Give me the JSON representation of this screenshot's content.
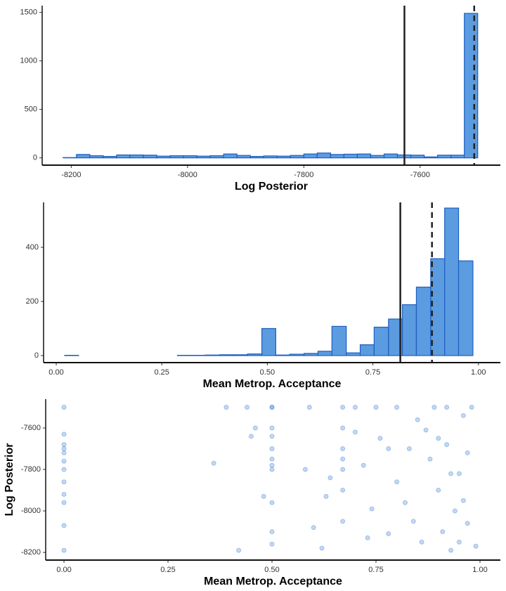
{
  "chart_data": [
    {
      "type": "histogram",
      "xlabel": "Log Posterior",
      "bins": [
        -8214,
        -8191,
        -8168,
        -8145,
        -8122,
        -8099,
        -8076,
        -8053,
        -8030,
        -8007,
        -7984,
        -7961,
        -7938,
        -7915,
        -7892,
        -7869,
        -7846,
        -7823,
        -7800,
        -7777,
        -7754,
        -7731,
        -7708,
        -7685,
        -7662,
        -7639,
        -7616,
        -7593,
        -7570,
        -7547,
        -7524,
        -7501
      ],
      "values": [
        3,
        35,
        22,
        15,
        30,
        30,
        28,
        18,
        22,
        22,
        18,
        22,
        40,
        25,
        15,
        20,
        18,
        25,
        40,
        50,
        35,
        38,
        40,
        25,
        40,
        30,
        28,
        10,
        28,
        28,
        1490
      ],
      "color": "#5b9be0",
      "edgecolor": "#1f5fbf",
      "xlim": [
        -8250,
        -7462
      ],
      "xticks": [
        -8200,
        -8000,
        -7800,
        -7600
      ],
      "ylim": [
        -75,
        1570
      ],
      "yticks": [
        0,
        500,
        1000,
        1500
      ],
      "vlines": [
        {
          "value": -7627,
          "style": "solid"
        },
        {
          "value": -7507,
          "style": "dashed"
        }
      ]
    },
    {
      "type": "histogram",
      "xlabel": "Mean Metrop. Acceptance",
      "bins": [
        0.02,
        0.053,
        0.087,
        0.12,
        0.153,
        0.187,
        0.22,
        0.253,
        0.287,
        0.32,
        0.353,
        0.387,
        0.42,
        0.453,
        0.487,
        0.52,
        0.553,
        0.587,
        0.62,
        0.653,
        0.687,
        0.72,
        0.753,
        0.787,
        0.82,
        0.853,
        0.887,
        0.92,
        0.953,
        0.987
      ],
      "values": [
        1,
        0,
        0,
        0,
        0,
        0,
        0,
        0,
        1,
        1,
        2,
        3,
        3,
        6,
        100,
        2,
        5,
        8,
        16,
        108,
        10,
        40,
        105,
        135,
        188,
        253,
        358,
        545,
        350
      ],
      "color": "#5b9be0",
      "edgecolor": "#1f5fbf",
      "xlim": [
        -0.03,
        1.052
      ],
      "xticks": [
        {
          "value": 0,
          "label": "0.00"
        },
        {
          "value": 0.25,
          "label": "0.25"
        },
        {
          "value": 0.5,
          "label": "0.50"
        },
        {
          "value": 0.75,
          "label": "0.75"
        },
        {
          "value": 1,
          "label": "1.00"
        }
      ],
      "ylim": [
        -26,
        566
      ],
      "yticks": [
        0,
        200,
        400
      ],
      "vlines": [
        {
          "value": 0.815,
          "style": "solid"
        },
        {
          "value": 0.89,
          "style": "dashed"
        }
      ]
    },
    {
      "type": "scatter",
      "xlabel": "Mean Metrop. Acceptance",
      "ylabel": "Log Posterior",
      "x": [
        0,
        0,
        0,
        0,
        0,
        0,
        0,
        0,
        0,
        0,
        0,
        0,
        0.5,
        0.5,
        0.5,
        0.5,
        0.5,
        0.5,
        0.5,
        0.5,
        0.5,
        0.5,
        0.5,
        0.67,
        0.67,
        0.67,
        0.67,
        0.67,
        0.67,
        0.67,
        0.36,
        0.42,
        0.39,
        0.44,
        0.46,
        0.45,
        0.48,
        0.58,
        0.6,
        0.59,
        0.63,
        0.62,
        0.64,
        0.7,
        0.72,
        0.74,
        0.76,
        0.78,
        0.8,
        0.82,
        0.84,
        0.85,
        0.87,
        0.88,
        0.9,
        0.91,
        0.92,
        0.93,
        0.94,
        0.95,
        0.96,
        0.97,
        0.96,
        0.93,
        0.89,
        0.8,
        0.75,
        0.7,
        0.92,
        0.98,
        0.99,
        0.86,
        0.78,
        0.73,
        0.9,
        0.95,
        0.83,
        0.97
      ],
      "y": [
        -7500,
        -7630,
        -7680,
        -7700,
        -7720,
        -7760,
        -7800,
        -7860,
        -7920,
        -7960,
        -8070,
        -8190,
        -7500,
        -7500,
        -7600,
        -7640,
        -7700,
        -7750,
        -7780,
        -7800,
        -7960,
        -8100,
        -8160,
        -7500,
        -7600,
        -7700,
        -7750,
        -7800,
        -7900,
        -8050,
        -7770,
        -8190,
        -7500,
        -7500,
        -7600,
        -7640,
        -7930,
        -7800,
        -8080,
        -7500,
        -7930,
        -8180,
        -7840,
        -7620,
        -7780,
        -7990,
        -7650,
        -7700,
        -7860,
        -7960,
        -8050,
        -7560,
        -7610,
        -7750,
        -7900,
        -8100,
        -7680,
        -7820,
        -8000,
        -8150,
        -7540,
        -7720,
        -7950,
        -8190,
        -7500,
        -7500,
        -7500,
        -7500,
        -7500,
        -7500,
        -8170,
        -8150,
        -8110,
        -8130,
        -7650,
        -7820,
        -7700,
        -8060
      ],
      "color": "#3a7fd5",
      "xlim": [
        -0.044,
        1.049
      ],
      "xticks": [
        {
          "value": 0,
          "label": "0.00"
        },
        {
          "value": 0.25,
          "label": "0.25"
        },
        {
          "value": 0.5,
          "label": "0.50"
        },
        {
          "value": 0.75,
          "label": "0.75"
        },
        {
          "value": 1,
          "label": "1.00"
        }
      ],
      "ylim": [
        -8237,
        -7461
      ],
      "yticks": [
        -8200,
        -8000,
        -7800,
        -7600
      ]
    }
  ]
}
